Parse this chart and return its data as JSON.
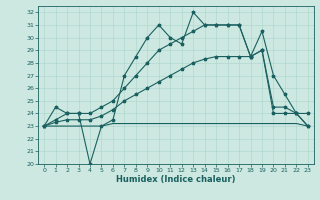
{
  "xlabel": "Humidex (Indice chaleur)",
  "xlim": [
    -0.5,
    23.5
  ],
  "ylim": [
    20,
    32.5
  ],
  "yticks": [
    20,
    21,
    22,
    23,
    24,
    25,
    26,
    27,
    28,
    29,
    30,
    31,
    32
  ],
  "xticks": [
    0,
    1,
    2,
    3,
    4,
    5,
    6,
    7,
    8,
    9,
    10,
    11,
    12,
    13,
    14,
    15,
    16,
    17,
    18,
    19,
    20,
    21,
    22,
    23
  ],
  "bg_color": "#cce8e0",
  "grid_color": "#aad4cc",
  "line_color": "#1a6060",
  "line1_y": [
    23.0,
    24.5,
    24.0,
    24.0,
    20.0,
    23.0,
    23.5,
    27.0,
    28.5,
    30.0,
    31.0,
    30.0,
    29.5,
    32.0,
    31.0,
    31.0,
    31.0,
    31.0,
    28.5,
    30.5,
    27.0,
    25.5,
    24.0,
    24.0
  ],
  "line2_y": [
    23.0,
    23.0,
    23.0,
    23.0,
    23.0,
    23.0,
    23.2,
    23.2,
    23.2,
    23.2,
    23.2,
    23.2,
    23.2,
    23.2,
    23.2,
    23.2,
    23.2,
    23.2,
    23.2,
    23.2,
    23.2,
    23.2,
    23.2,
    23.0
  ],
  "line3_y": [
    23.0,
    23.3,
    23.5,
    23.5,
    23.5,
    23.8,
    24.3,
    25.0,
    25.5,
    26.0,
    26.5,
    27.0,
    27.5,
    28.0,
    28.3,
    28.5,
    28.5,
    28.5,
    28.5,
    29.0,
    24.0,
    24.0,
    24.0,
    23.0
  ],
  "line4_y": [
    23.0,
    23.5,
    24.0,
    24.0,
    24.0,
    24.5,
    25.0,
    26.0,
    27.0,
    28.0,
    29.0,
    29.5,
    30.0,
    30.5,
    31.0,
    31.0,
    31.0,
    31.0,
    28.5,
    29.0,
    24.5,
    24.5,
    24.0,
    23.0
  ]
}
